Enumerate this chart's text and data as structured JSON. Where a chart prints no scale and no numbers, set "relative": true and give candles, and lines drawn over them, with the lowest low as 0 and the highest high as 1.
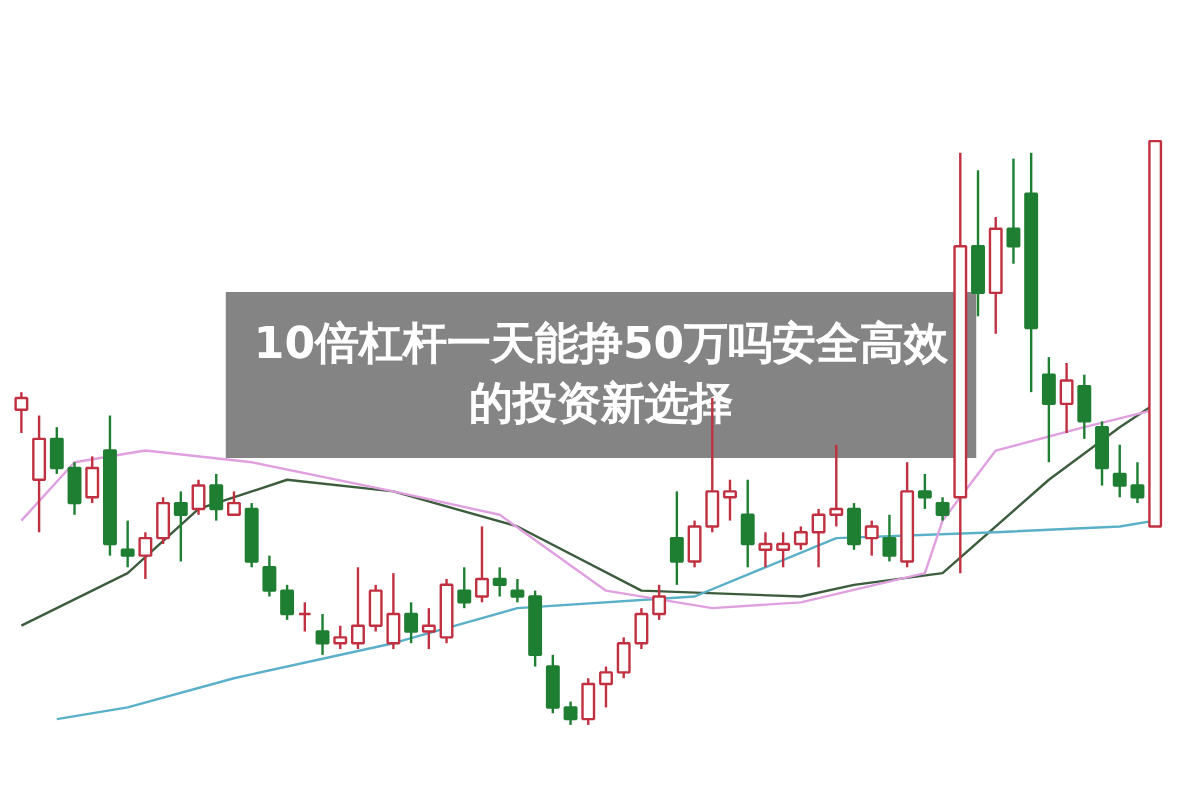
{
  "chart_data": {
    "type": "candlestick",
    "title": "10倍杠杆一天能挣50万吗安全高效的投资新选择",
    "relative": true,
    "categories": [
      null,
      null,
      null,
      null,
      null,
      null,
      null,
      null,
      null,
      null,
      null,
      null,
      null,
      null,
      null,
      null,
      null,
      null,
      null,
      null,
      null,
      null,
      null,
      null,
      null,
      null,
      null,
      null,
      null,
      null,
      null,
      null,
      null,
      null,
      null,
      null,
      null,
      null,
      null,
      null,
      null,
      null,
      null,
      null,
      null,
      null,
      null,
      null,
      null,
      null,
      null,
      null,
      null,
      null,
      null,
      null,
      null,
      null,
      null,
      null,
      null,
      null,
      null,
      null,
      null
    ],
    "ohlc": [
      [
        0.54,
        0.57,
        0.5,
        0.56
      ],
      [
        0.42,
        0.53,
        0.33,
        0.49
      ],
      [
        0.49,
        0.51,
        0.43,
        0.44
      ],
      [
        0.44,
        0.45,
        0.36,
        0.38
      ],
      [
        0.39,
        0.46,
        0.38,
        0.44
      ],
      [
        0.47,
        0.53,
        0.29,
        0.31
      ],
      [
        0.3,
        0.35,
        0.27,
        0.29
      ],
      [
        0.29,
        0.33,
        0.25,
        0.32
      ],
      [
        0.32,
        0.39,
        0.31,
        0.38
      ],
      [
        0.38,
        0.4,
        0.28,
        0.36
      ],
      [
        0.37,
        0.42,
        0.36,
        0.41
      ],
      [
        0.41,
        0.43,
        0.35,
        0.37
      ],
      [
        0.36,
        0.4,
        0.36,
        0.38
      ],
      [
        0.37,
        0.38,
        0.27,
        0.28
      ],
      [
        0.27,
        0.29,
        0.22,
        0.23
      ],
      [
        0.23,
        0.24,
        0.18,
        0.19
      ],
      [
        0.19,
        0.21,
        0.16,
        0.19
      ],
      [
        0.16,
        0.19,
        0.12,
        0.14
      ],
      [
        0.14,
        0.17,
        0.13,
        0.15
      ],
      [
        0.14,
        0.27,
        0.13,
        0.17
      ],
      [
        0.17,
        0.24,
        0.16,
        0.23
      ],
      [
        0.14,
        0.26,
        0.13,
        0.19
      ],
      [
        0.19,
        0.21,
        0.14,
        0.16
      ],
      [
        0.16,
        0.2,
        0.13,
        0.17
      ],
      [
        0.15,
        0.25,
        0.14,
        0.24
      ],
      [
        0.23,
        0.27,
        0.2,
        0.21
      ],
      [
        0.22,
        0.34,
        0.21,
        0.25
      ],
      [
        0.25,
        0.27,
        0.22,
        0.24
      ],
      [
        0.23,
        0.25,
        0.21,
        0.22
      ],
      [
        0.22,
        0.23,
        0.1,
        0.12
      ],
      [
        0.1,
        0.12,
        0.02,
        0.03
      ],
      [
        0.03,
        0.04,
        0.0,
        0.01
      ],
      [
        0.01,
        0.08,
        0.0,
        0.07
      ],
      [
        0.07,
        0.1,
        0.03,
        0.09
      ],
      [
        0.09,
        0.15,
        0.08,
        0.14
      ],
      [
        0.14,
        0.2,
        0.13,
        0.19
      ],
      [
        0.19,
        0.24,
        0.18,
        0.22
      ],
      [
        0.32,
        0.4,
        0.24,
        0.28
      ],
      [
        0.28,
        0.35,
        0.27,
        0.34
      ],
      [
        0.34,
        0.56,
        0.33,
        0.4
      ],
      [
        0.39,
        0.42,
        0.35,
        0.4
      ],
      [
        0.36,
        0.42,
        0.27,
        0.31
      ],
      [
        0.3,
        0.33,
        0.27,
        0.31
      ],
      [
        0.3,
        0.33,
        0.27,
        0.31
      ],
      [
        0.31,
        0.34,
        0.3,
        0.33
      ],
      [
        0.33,
        0.37,
        0.27,
        0.36
      ],
      [
        0.36,
        0.48,
        0.34,
        0.37
      ],
      [
        0.37,
        0.38,
        0.3,
        0.31
      ],
      [
        0.32,
        0.35,
        0.29,
        0.34
      ],
      [
        0.32,
        0.36,
        0.28,
        0.29
      ],
      [
        0.28,
        0.45,
        0.27,
        0.4
      ],
      [
        0.4,
        0.43,
        0.37,
        0.39
      ],
      [
        0.38,
        0.39,
        0.35,
        0.36
      ],
      [
        0.39,
        0.98,
        0.26,
        0.82
      ],
      [
        0.82,
        0.95,
        0.7,
        0.74
      ],
      [
        0.74,
        0.87,
        0.67,
        0.85
      ],
      [
        0.85,
        0.97,
        0.79,
        0.82
      ],
      [
        0.91,
        0.98,
        0.57,
        0.68
      ],
      [
        0.6,
        0.63,
        0.45,
        0.55
      ],
      [
        0.55,
        0.62,
        0.5,
        0.59
      ],
      [
        0.58,
        0.6,
        0.49,
        0.52
      ],
      [
        0.51,
        0.52,
        0.41,
        0.44
      ],
      [
        0.43,
        0.48,
        0.39,
        0.41
      ],
      [
        0.41,
        0.45,
        0.38,
        0.39
      ],
      [
        0.34,
        1,
        0.34,
        1
      ]
    ],
    "colors": [
      "#c03040",
      "#c03040",
      "#1e7e32",
      "#1e7e32",
      "#c03040",
      "#1e7e32",
      "#1e7e32",
      "#c03040",
      "#c03040",
      "#1e7e32",
      "#c03040",
      "#1e7e32",
      "#c03040",
      "#1e7e32",
      "#1e7e32",
      "#1e7e32",
      "#c03040",
      "#1e7e32",
      "#c03040",
      "#c03040",
      "#c03040",
      "#c03040",
      "#1e7e32",
      "#c03040",
      "#c03040",
      "#1e7e32",
      "#c03040",
      "#1e7e32",
      "#1e7e32",
      "#1e7e32",
      "#1e7e32",
      "#1e7e32",
      "#c03040",
      "#c03040",
      "#c03040",
      "#c03040",
      "#c03040",
      "#1e7e32",
      "#c03040",
      "#c03040",
      "#c03040",
      "#1e7e32",
      "#c03040",
      "#c03040",
      "#c03040",
      "#c03040",
      "#c03040",
      "#1e7e32",
      "#c03040",
      "#1e7e32",
      "#c03040",
      "#1e7e32",
      "#1e7e32",
      "#c03040",
      "#1e7e32",
      "#c03040",
      "#1e7e32",
      "#1e7e32",
      "#1e7e32",
      "#c03040",
      "#1e7e32",
      "#1e7e32",
      "#1e7e32",
      "#1e7e32",
      "#c03040"
    ],
    "series": [
      {
        "type": "line",
        "color": "#3d5c3d",
        "values": [
          0.17,
          null,
          null,
          null,
          null,
          null,
          0.26,
          null,
          null,
          null,
          0.37,
          null,
          null,
          null,
          null,
          0.42,
          null,
          null,
          null,
          null,
          null,
          0.4,
          null,
          null,
          null,
          null,
          null,
          null,
          0.34,
          null,
          null,
          null,
          null,
          null,
          null,
          0.23,
          null,
          null,
          null,
          null,
          null,
          null,
          null,
          null,
          0.22,
          null,
          null,
          0.24,
          null,
          null,
          null,
          null,
          0.26,
          null,
          null,
          null,
          null,
          null,
          0.42,
          null,
          null,
          null,
          0.51,
          null,
          0.55
        ]
      },
      {
        "type": "line",
        "color": "#5ab0c8",
        "values": [
          null,
          null,
          0.01,
          null,
          null,
          null,
          0.03,
          null,
          null,
          null,
          null,
          null,
          0.08,
          null,
          null,
          null,
          null,
          null,
          null,
          null,
          null,
          0.14,
          null,
          null,
          null,
          null,
          null,
          null,
          0.2,
          null,
          null,
          null,
          null,
          null,
          null,
          null,
          null,
          null,
          0.22,
          null,
          null,
          null,
          null,
          null,
          null,
          null,
          0.32,
          null,
          null,
          null,
          null,
          null,
          null,
          null,
          null,
          0.33,
          null,
          null,
          null,
          null,
          null,
          null,
          0.34,
          null,
          0.35
        ]
      },
      {
        "type": "line",
        "color": "#e0a0e0",
        "values": [
          0.35,
          null,
          null,
          0.45,
          null,
          null,
          null,
          0.47,
          null,
          null,
          null,
          null,
          null,
          0.45,
          null,
          null,
          null,
          null,
          null,
          null,
          null,
          0.4,
          null,
          null,
          null,
          null,
          null,
          0.36,
          null,
          null,
          null,
          null,
          null,
          0.23,
          null,
          null,
          null,
          null,
          null,
          0.2,
          null,
          null,
          null,
          null,
          0.21,
          null,
          null,
          null,
          null,
          null,
          null,
          0.26,
          0.35,
          null,
          null,
          0.47,
          null,
          null,
          null,
          null,
          0.51,
          null,
          null,
          null,
          0.54
        ]
      }
    ]
  }
}
